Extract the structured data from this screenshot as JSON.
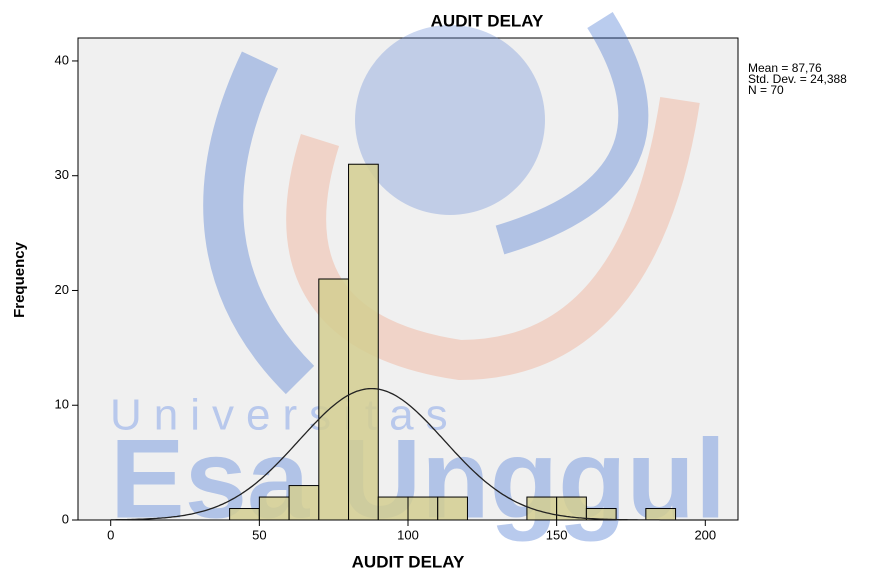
{
  "chart_data": {
    "type": "histogram",
    "title": "AUDIT DELAY",
    "x_label": "AUDIT DELAY",
    "y_label": "Frequency",
    "bins": [
      40,
      50,
      60,
      70,
      80,
      90,
      100,
      110,
      120,
      130,
      140,
      150,
      160,
      170,
      180,
      190
    ],
    "values": [
      1,
      2,
      3,
      21,
      31,
      2,
      2,
      2,
      0,
      0,
      2,
      2,
      1,
      0,
      1
    ],
    "color": "#d4ce90",
    "xlim": [
      -11,
      211
    ],
    "xticks": [
      0,
      50,
      100,
      150,
      200
    ],
    "ylim": [
      0,
      42
    ],
    "yticks": [
      0,
      10,
      20,
      30,
      40
    ],
    "normal_curve": true,
    "stats": [
      {
        "value": 87.76,
        "label": "Mean = 87,76"
      },
      {
        "value": 24.388,
        "label": "Std. Dev. = 24,388"
      },
      {
        "value": 70,
        "label": "N = 70"
      }
    ],
    "watermark": [
      "Universitas",
      "Esa Unggul"
    ]
  }
}
